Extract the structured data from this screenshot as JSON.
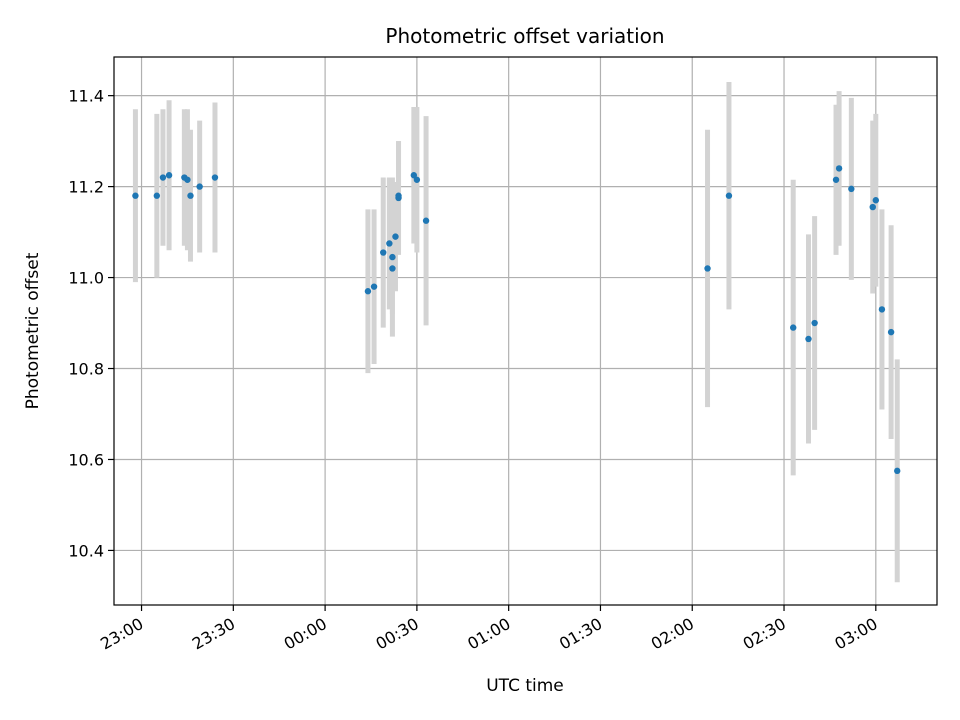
{
  "chart_data": {
    "type": "scatter",
    "title": "Photometric offset variation",
    "xlabel": "UTC time",
    "ylabel": "Photometric offset",
    "x_is_time": true,
    "x_ticks": [
      "23:00",
      "23:30",
      "00:00",
      "00:30",
      "01:00",
      "01:30",
      "02:00",
      "02:30",
      "03:00"
    ],
    "y_ticks": [
      "10.4",
      "10.6",
      "10.8",
      "11.0",
      "11.2",
      "11.4"
    ],
    "ylim": [
      10.28,
      11.485
    ],
    "xlim": [
      "22:51",
      "03:20"
    ],
    "grid": true,
    "colors": {
      "points": "#1f77b4",
      "errorbars": "#d3d3d3",
      "grid": "#b0b0b0"
    },
    "series": [
      {
        "points": [
          {
            "t": "22:58",
            "y": 11.18,
            "err": 0.19
          },
          {
            "t": "23:05",
            "y": 11.18,
            "err": 0.18
          },
          {
            "t": "23:07",
            "y": 11.22,
            "err": 0.15
          },
          {
            "t": "23:09",
            "y": 11.225,
            "err": 0.165
          },
          {
            "t": "23:14",
            "y": 11.22,
            "err": 0.15
          },
          {
            "t": "23:15",
            "y": 11.215,
            "err": 0.155
          },
          {
            "t": "23:16",
            "y": 11.18,
            "err": 0.145
          },
          {
            "t": "23:19",
            "y": 11.2,
            "err": 0.145
          },
          {
            "t": "23:24",
            "y": 11.22,
            "err": 0.165
          },
          {
            "t": "00:14",
            "y": 10.97,
            "err": 0.18
          },
          {
            "t": "00:16",
            "y": 10.98,
            "err": 0.17
          },
          {
            "t": "00:19",
            "y": 11.055,
            "err": 0.165
          },
          {
            "t": "00:21",
            "y": 11.075,
            "err": 0.145
          },
          {
            "t": "00:22",
            "y": 11.02,
            "err": 0.1
          },
          {
            "t": "00:22",
            "y": 11.045,
            "err": 0.175
          },
          {
            "t": "00:23",
            "y": 11.09,
            "err": 0.12
          },
          {
            "t": "00:24",
            "y": 11.175,
            "err": 0.125
          },
          {
            "t": "00:24",
            "y": 11.18,
            "err": 0.12
          },
          {
            "t": "00:29",
            "y": 11.225,
            "err": 0.15
          },
          {
            "t": "00:30",
            "y": 11.215,
            "err": 0.16
          },
          {
            "t": "00:33",
            "y": 11.125,
            "err": 0.23
          },
          {
            "t": "02:05",
            "y": 11.02,
            "err": 0.305
          },
          {
            "t": "02:12",
            "y": 11.18,
            "err": 0.25
          },
          {
            "t": "02:33",
            "y": 10.89,
            "err": 0.325
          },
          {
            "t": "02:38",
            "y": 10.865,
            "err": 0.23
          },
          {
            "t": "02:40",
            "y": 10.9,
            "err": 0.235
          },
          {
            "t": "02:47",
            "y": 11.215,
            "err": 0.165
          },
          {
            "t": "02:48",
            "y": 11.24,
            "err": 0.17
          },
          {
            "t": "02:52",
            "y": 11.195,
            "err": 0.2
          },
          {
            "t": "02:59",
            "y": 11.155,
            "err": 0.19
          },
          {
            "t": "03:00",
            "y": 11.17,
            "err": 0.19
          },
          {
            "t": "03:02",
            "y": 10.93,
            "err": 0.22
          },
          {
            "t": "03:05",
            "y": 10.88,
            "err": 0.235
          },
          {
            "t": "03:07",
            "y": 10.575,
            "err": 0.245
          }
        ]
      }
    ]
  }
}
